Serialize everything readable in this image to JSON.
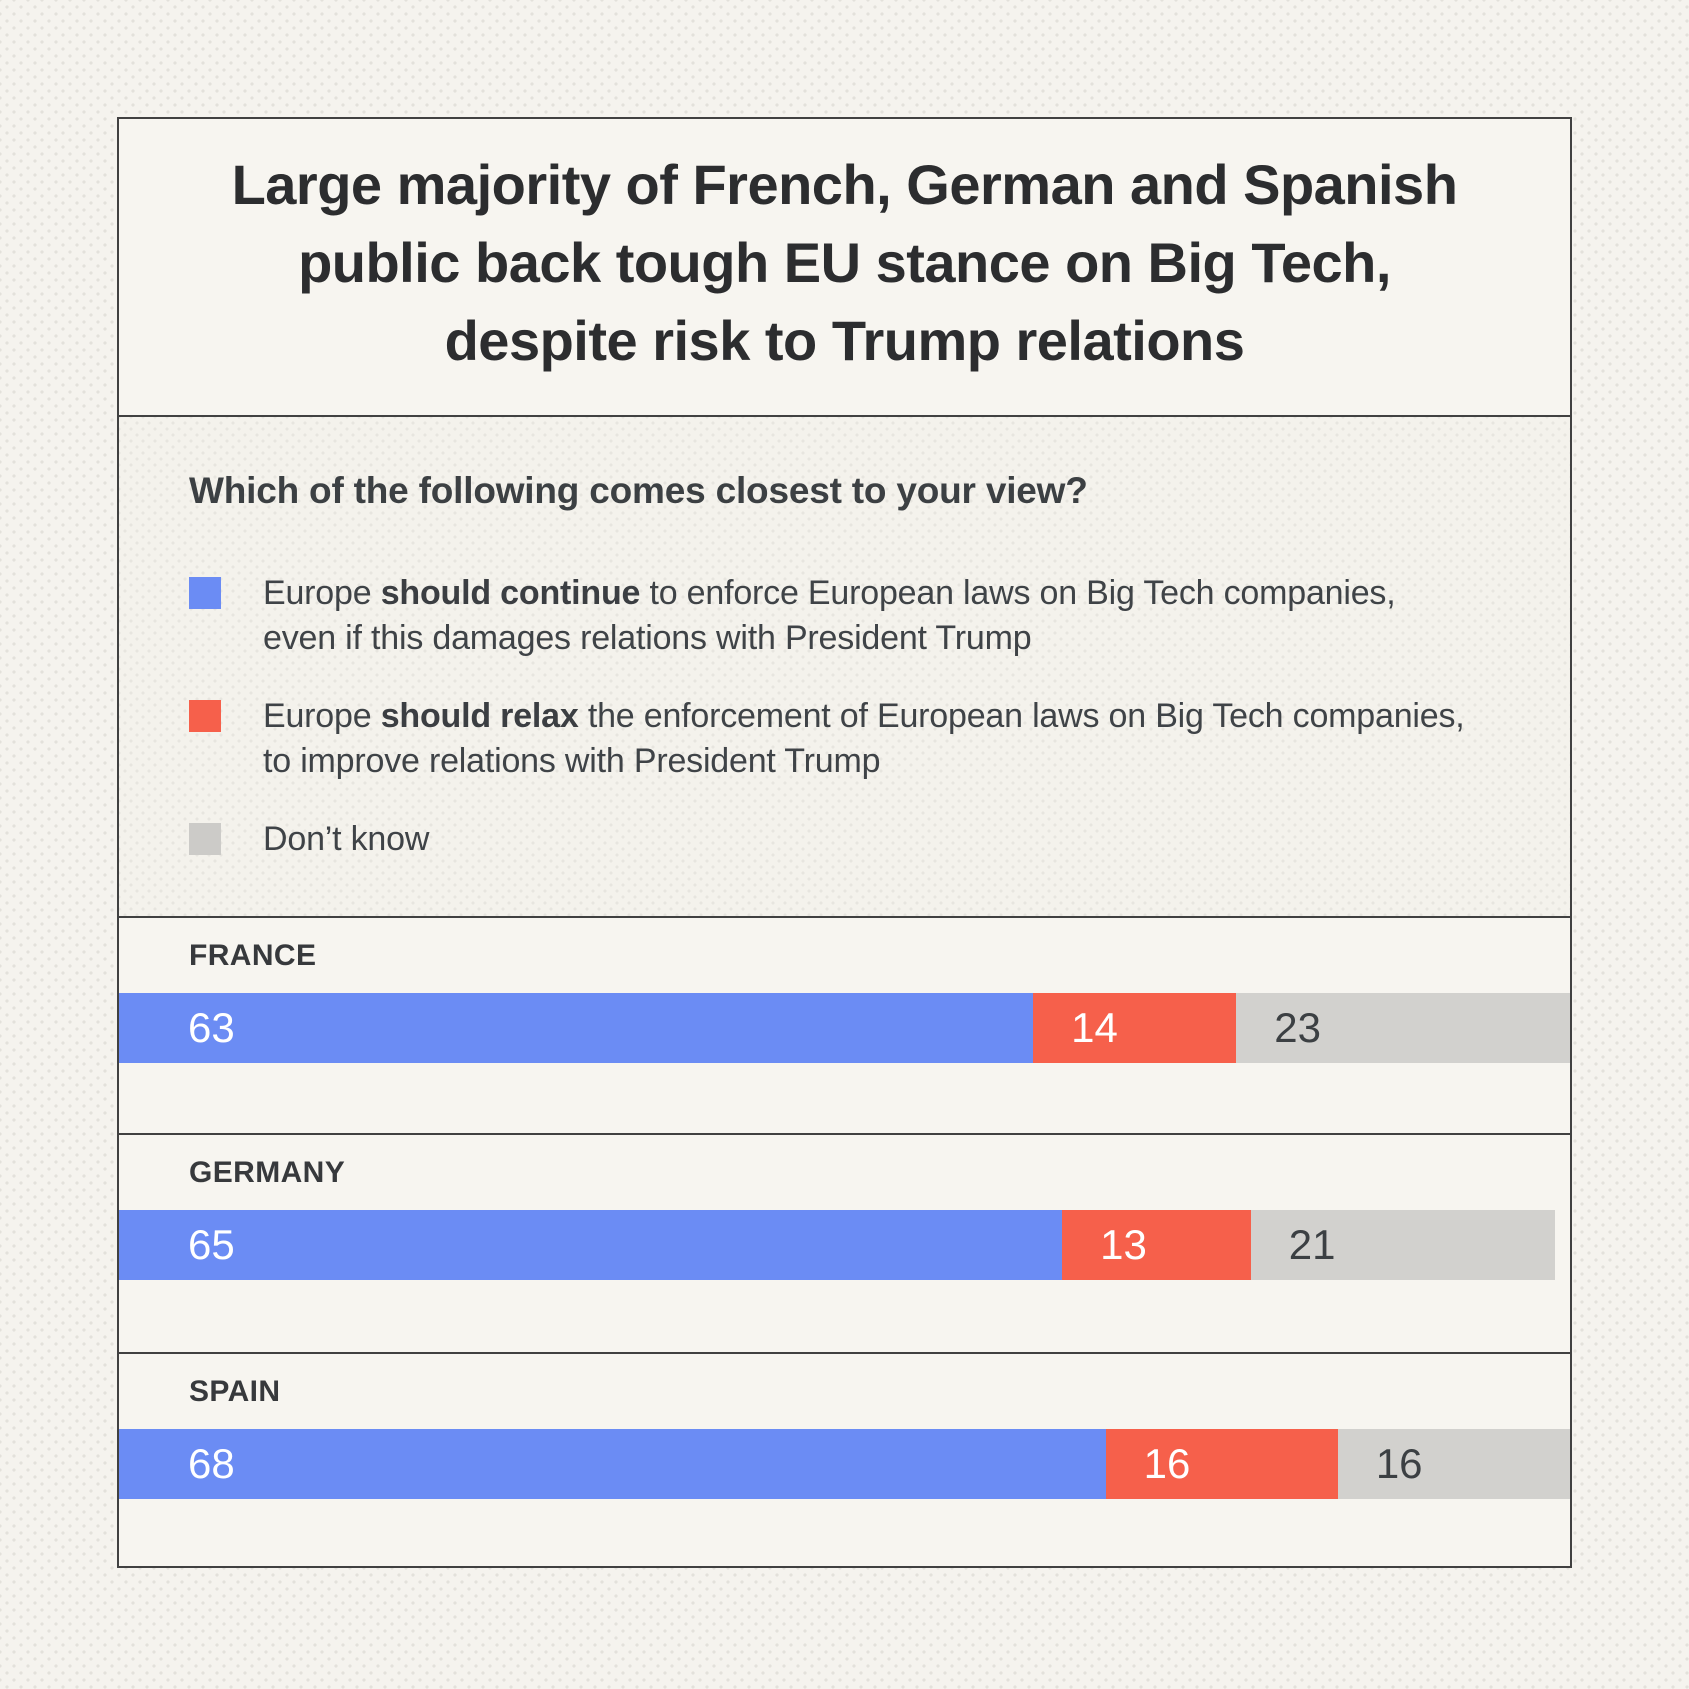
{
  "header": {
    "title_lines": [
      "Large majority of French, German and Spanish",
      "public back tough EU stance on Big Tech,",
      "despite risk to Trump relations"
    ]
  },
  "survey": {
    "question": "Which of the following comes closest to your view?",
    "options": [
      {
        "pre": "Europe ",
        "bold": "should continue",
        "line1_rest": " to enforce European laws on Big Tech companies,",
        "line2": "even if this damages relations with President Trump",
        "color": "#6b8cf4"
      },
      {
        "pre": "Europe ",
        "bold": "should relax",
        "line1_rest": " the enforcement of European laws on Big Tech companies,",
        "line2": "to improve relations with President Trump",
        "color": "#f6604b"
      },
      {
        "pre": "",
        "bold": "",
        "line1_rest": "Don’t know",
        "line2": "",
        "color": "#cccbc8"
      }
    ]
  },
  "chart_data": {
    "type": "bar",
    "orientation": "horizontal-stacked",
    "title": "Large majority of French, German and Spanish public back tough EU stance on Big Tech, despite risk to Trump relations",
    "subtitle": "Which of the following comes closest to your view?",
    "categories": [
      "FRANCE",
      "GERMANY",
      "SPAIN"
    ],
    "series": [
      {
        "name": "Europe should continue to enforce European laws on Big Tech companies, even if this damages relations with President Trump",
        "color": "#6b8cf4",
        "values": [
          63,
          65,
          68
        ]
      },
      {
        "name": "Europe should relax the enforcement of European laws on Big Tech companies, to improve relations with President Trump",
        "color": "#f6604b",
        "values": [
          14,
          13,
          16
        ]
      },
      {
        "name": "Don’t know",
        "color": "#d2d1ce",
        "values": [
          23,
          21,
          16
        ]
      }
    ],
    "xlim": [
      0,
      100
    ],
    "units": "percent",
    "grid": false,
    "legend_position": "above-left",
    "value_labels": "inside-left"
  },
  "colors": {
    "accent_blue": "#6b8cf4",
    "accent_red": "#f6604b",
    "neutral_gray": "#d2d1ce",
    "panel_background": "#f7f5f0",
    "legend_background": "#f4f2ec",
    "page_background": "#f5f3ee",
    "border": "#414141",
    "text_dark": "#2c2d2f",
    "text_body": "#3f4347"
  }
}
